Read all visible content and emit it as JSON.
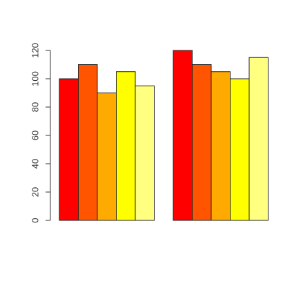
{
  "chart_data": {
    "type": "bar",
    "categories": [
      null,
      null
    ],
    "series": [
      {
        "color": "#ff0000",
        "values": [
          100,
          120
        ]
      },
      {
        "color": "#ff5500",
        "values": [
          110,
          110
        ]
      },
      {
        "color": "#ffaa00",
        "values": [
          90,
          105
        ]
      },
      {
        "color": "#ffff00",
        "values": [
          105,
          100
        ]
      },
      {
        "color": "#ffff80",
        "values": [
          95,
          115
        ]
      }
    ],
    "ylim": [
      0,
      120
    ],
    "yticks": [
      0,
      20,
      40,
      60,
      80,
      100,
      120
    ],
    "grid": false
  }
}
